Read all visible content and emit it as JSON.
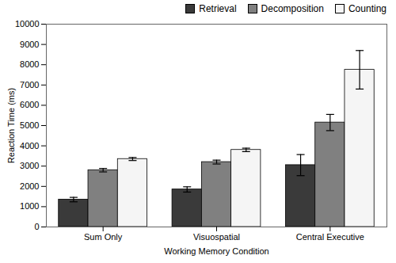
{
  "chart_data": {
    "type": "bar",
    "categories": [
      "Sum Only",
      "Visuospatial",
      "Central Executive"
    ],
    "series": [
      {
        "name": "Retrieval",
        "color": "#3a3a3a",
        "values": [
          1350,
          1850,
          3050
        ],
        "errors": [
          110,
          130,
          520
        ]
      },
      {
        "name": "Decomposition",
        "color": "#808080",
        "values": [
          2800,
          3200,
          5150
        ],
        "errors": [
          85,
          95,
          400
        ]
      },
      {
        "name": "Counting",
        "color": "#f5f5f5",
        "values": [
          3350,
          3800,
          7750
        ],
        "errors": [
          75,
          85,
          950
        ]
      }
    ],
    "xlabel": "Working Memory Condition",
    "ylabel": "Reaction Time (ms)",
    "ylim": [
      0,
      10000
    ],
    "yticks": [
      0,
      1000,
      2000,
      3000,
      4000,
      5000,
      6000,
      7000,
      8000,
      9000,
      10000
    ],
    "legend": "upper right",
    "grid": false
  }
}
